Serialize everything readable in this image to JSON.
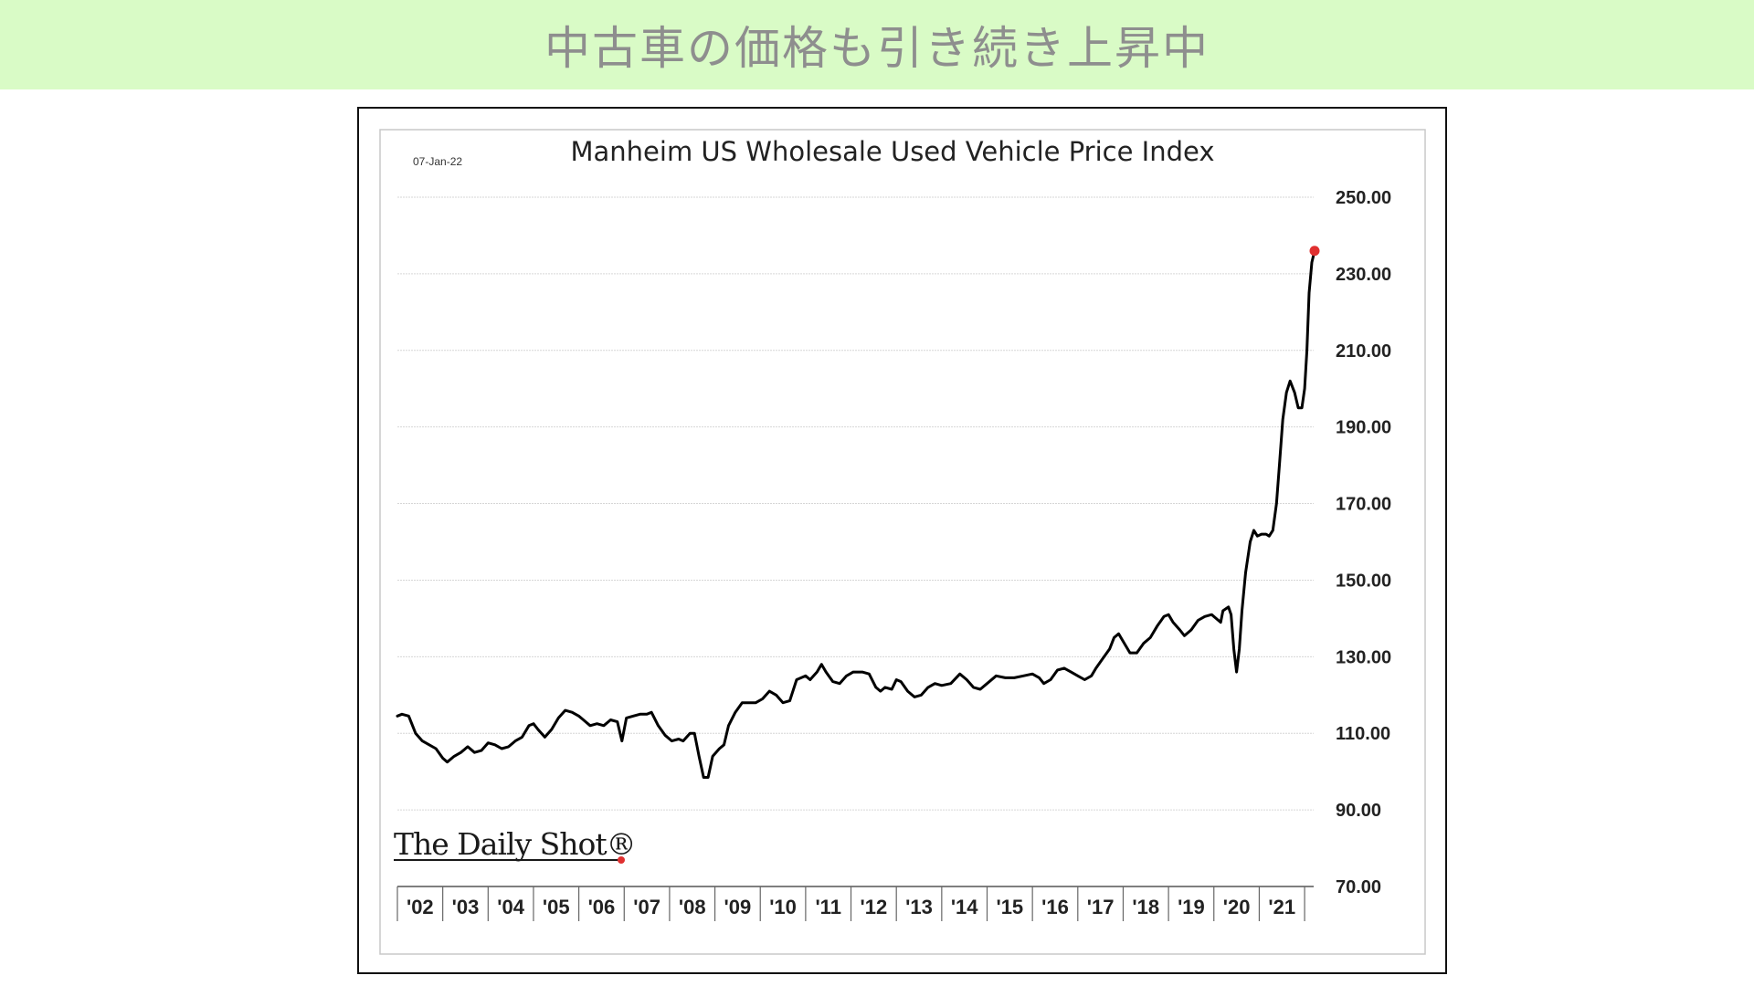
{
  "page": {
    "banner_title": "中古車の価格も引き続き上昇中"
  },
  "chart_data": {
    "type": "line",
    "title": "Manheim US Wholesale Used Vehicle Price Index",
    "date_label": "07-Jan-22",
    "source_logo": "The Daily Shot®",
    "xlabel": "",
    "ylabel": "",
    "ylim": [
      70,
      250
    ],
    "yticks": [
      70,
      90,
      110,
      130,
      150,
      170,
      190,
      210,
      230,
      250
    ],
    "ytick_labels": [
      "70.00",
      "90.00",
      "110.00",
      "130.00",
      "150.00",
      "170.00",
      "190.00",
      "210.00",
      "230.00",
      "250.00"
    ],
    "year_labels": [
      "'02",
      "'03",
      "'04",
      "'05",
      "'06",
      "'07",
      "'08",
      "'09",
      "'10",
      "'11",
      "'12",
      "'13",
      "'14",
      "'15",
      "'16",
      "'17",
      "'18",
      "'19",
      "'20",
      "'21"
    ],
    "xlim_years": [
      2002,
      2022.2
    ],
    "grid": true,
    "series_color": "#000000",
    "endpoint_color": "#e03030",
    "series": [
      {
        "name": "",
        "points": [
          [
            2002.0,
            114.5
          ],
          [
            2002.1,
            115.0
          ],
          [
            2002.25,
            114.5
          ],
          [
            2002.4,
            110
          ],
          [
            2002.55,
            108
          ],
          [
            2002.7,
            107
          ],
          [
            2002.85,
            106
          ],
          [
            2003.0,
            103.5
          ],
          [
            2003.1,
            102.5
          ],
          [
            2003.25,
            104
          ],
          [
            2003.4,
            105
          ],
          [
            2003.55,
            106.5
          ],
          [
            2003.7,
            105
          ],
          [
            2003.85,
            105.5
          ],
          [
            2004.0,
            107.5
          ],
          [
            2004.15,
            107
          ],
          [
            2004.3,
            106
          ],
          [
            2004.45,
            106.5
          ],
          [
            2004.6,
            108
          ],
          [
            2004.75,
            109
          ],
          [
            2004.9,
            112
          ],
          [
            2005.0,
            112.5
          ],
          [
            2005.1,
            111
          ],
          [
            2005.25,
            109
          ],
          [
            2005.4,
            111
          ],
          [
            2005.55,
            114
          ],
          [
            2005.7,
            116
          ],
          [
            2005.85,
            115.5
          ],
          [
            2006.0,
            114.5
          ],
          [
            2006.1,
            113.5
          ],
          [
            2006.25,
            112
          ],
          [
            2006.4,
            112.5
          ],
          [
            2006.55,
            112
          ],
          [
            2006.7,
            113.5
          ],
          [
            2006.85,
            113
          ],
          [
            2006.95,
            108
          ],
          [
            2007.05,
            114
          ],
          [
            2007.2,
            114.5
          ],
          [
            2007.35,
            115
          ],
          [
            2007.5,
            115
          ],
          [
            2007.6,
            115.5
          ],
          [
            2007.75,
            112
          ],
          [
            2007.9,
            109.5
          ],
          [
            2008.05,
            108
          ],
          [
            2008.2,
            108.5
          ],
          [
            2008.3,
            108
          ],
          [
            2008.45,
            110
          ],
          [
            2008.55,
            110
          ],
          [
            2008.65,
            104
          ],
          [
            2008.75,
            98.5
          ],
          [
            2008.85,
            98.5
          ],
          [
            2008.95,
            104
          ],
          [
            2009.1,
            106
          ],
          [
            2009.2,
            107
          ],
          [
            2009.3,
            112
          ],
          [
            2009.45,
            115.5
          ],
          [
            2009.6,
            118
          ],
          [
            2009.75,
            118
          ],
          [
            2009.9,
            118
          ],
          [
            2010.05,
            119
          ],
          [
            2010.2,
            121
          ],
          [
            2010.35,
            120
          ],
          [
            2010.5,
            118
          ],
          [
            2010.65,
            118.5
          ],
          [
            2010.8,
            124
          ],
          [
            2011.0,
            125
          ],
          [
            2011.1,
            124
          ],
          [
            2011.25,
            126
          ],
          [
            2011.35,
            128
          ],
          [
            2011.45,
            126
          ],
          [
            2011.6,
            123.5
          ],
          [
            2011.75,
            123
          ],
          [
            2011.9,
            125
          ],
          [
            2012.05,
            126
          ],
          [
            2012.25,
            126
          ],
          [
            2012.4,
            125.5
          ],
          [
            2012.55,
            122
          ],
          [
            2012.65,
            121
          ],
          [
            2012.75,
            122
          ],
          [
            2012.9,
            121.5
          ],
          [
            2013.0,
            124
          ],
          [
            2013.1,
            123.5
          ],
          [
            2013.25,
            121
          ],
          [
            2013.4,
            119.5
          ],
          [
            2013.55,
            120
          ],
          [
            2013.7,
            122
          ],
          [
            2013.85,
            123
          ],
          [
            2014.0,
            122.5
          ],
          [
            2014.2,
            123
          ],
          [
            2014.4,
            125.5
          ],
          [
            2014.55,
            124
          ],
          [
            2014.7,
            122
          ],
          [
            2014.85,
            121.5
          ],
          [
            2015.0,
            123
          ],
          [
            2015.2,
            125
          ],
          [
            2015.4,
            124.5
          ],
          [
            2015.6,
            124.5
          ],
          [
            2015.8,
            125
          ],
          [
            2016.0,
            125.5
          ],
          [
            2016.15,
            124.5
          ],
          [
            2016.25,
            123
          ],
          [
            2016.4,
            124
          ],
          [
            2016.55,
            126.5
          ],
          [
            2016.7,
            127
          ],
          [
            2016.85,
            126
          ],
          [
            2017.0,
            125
          ],
          [
            2017.15,
            124
          ],
          [
            2017.3,
            125
          ],
          [
            2017.4,
            127
          ],
          [
            2017.55,
            129.5
          ],
          [
            2017.7,
            132
          ],
          [
            2017.8,
            135
          ],
          [
            2017.9,
            136
          ],
          [
            2018.0,
            134
          ],
          [
            2018.15,
            131
          ],
          [
            2018.3,
            131
          ],
          [
            2018.45,
            133.5
          ],
          [
            2018.6,
            135
          ],
          [
            2018.75,
            138
          ],
          [
            2018.9,
            140.5
          ],
          [
            2019.0,
            141
          ],
          [
            2019.1,
            139
          ],
          [
            2019.25,
            137
          ],
          [
            2019.35,
            135.5
          ],
          [
            2019.5,
            137
          ],
          [
            2019.65,
            139.5
          ],
          [
            2019.8,
            140.5
          ],
          [
            2019.95,
            141
          ],
          [
            2020.05,
            140
          ],
          [
            2020.15,
            139
          ],
          [
            2020.2,
            142
          ],
          [
            2020.32,
            143
          ],
          [
            2020.38,
            141
          ],
          [
            2020.44,
            132
          ],
          [
            2020.5,
            126
          ],
          [
            2020.56,
            132
          ],
          [
            2020.62,
            142
          ],
          [
            2020.7,
            152
          ],
          [
            2020.8,
            160
          ],
          [
            2020.88,
            163
          ],
          [
            2020.96,
            161.5
          ],
          [
            2021.05,
            162
          ],
          [
            2021.15,
            162
          ],
          [
            2021.22,
            161.5
          ],
          [
            2021.3,
            163
          ],
          [
            2021.38,
            170
          ],
          [
            2021.45,
            181
          ],
          [
            2021.52,
            192
          ],
          [
            2021.6,
            199
          ],
          [
            2021.68,
            202
          ],
          [
            2021.78,
            199
          ],
          [
            2021.86,
            195
          ],
          [
            2021.94,
            195
          ],
          [
            2022.0,
            200
          ],
          [
            2022.05,
            210
          ],
          [
            2022.1,
            225
          ],
          [
            2022.16,
            233
          ],
          [
            2022.22,
            236
          ]
        ]
      }
    ]
  }
}
